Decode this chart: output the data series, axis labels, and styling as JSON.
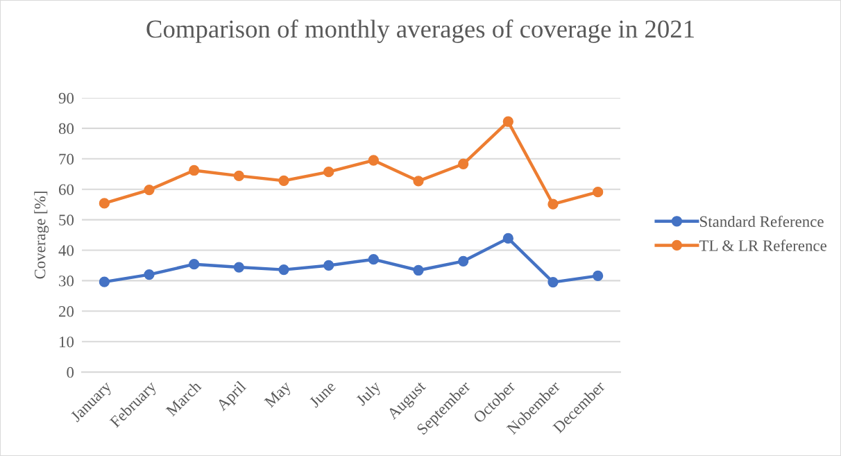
{
  "chart_data": {
    "type": "line",
    "title": "Comparison of monthly averages of coverage in 2021",
    "ylabel": "Coverage [%]",
    "categories": [
      "January",
      "February",
      "March",
      "April",
      "May",
      "June",
      "July",
      "August",
      "September",
      "October",
      "Nobember",
      "December"
    ],
    "series": [
      {
        "name": "Standard Reference",
        "color": "#4472c4",
        "values": [
          29.6,
          32.0,
          35.4,
          34.4,
          33.6,
          35.0,
          37.0,
          33.4,
          36.4,
          43.9,
          29.5,
          31.6
        ]
      },
      {
        "name": "TL & LR Reference",
        "color": "#ed7d31",
        "values": [
          55.4,
          59.8,
          66.2,
          64.4,
          62.8,
          65.7,
          69.5,
          62.7,
          68.3,
          82.2,
          55.1,
          59.1
        ]
      }
    ],
    "ylim": [
      0,
      90
    ],
    "yticks": [
      0,
      10,
      20,
      30,
      40,
      50,
      60,
      70,
      80,
      90
    ],
    "grid": "y",
    "legend": "right",
    "marker": "circle",
    "line_style": "solid"
  }
}
